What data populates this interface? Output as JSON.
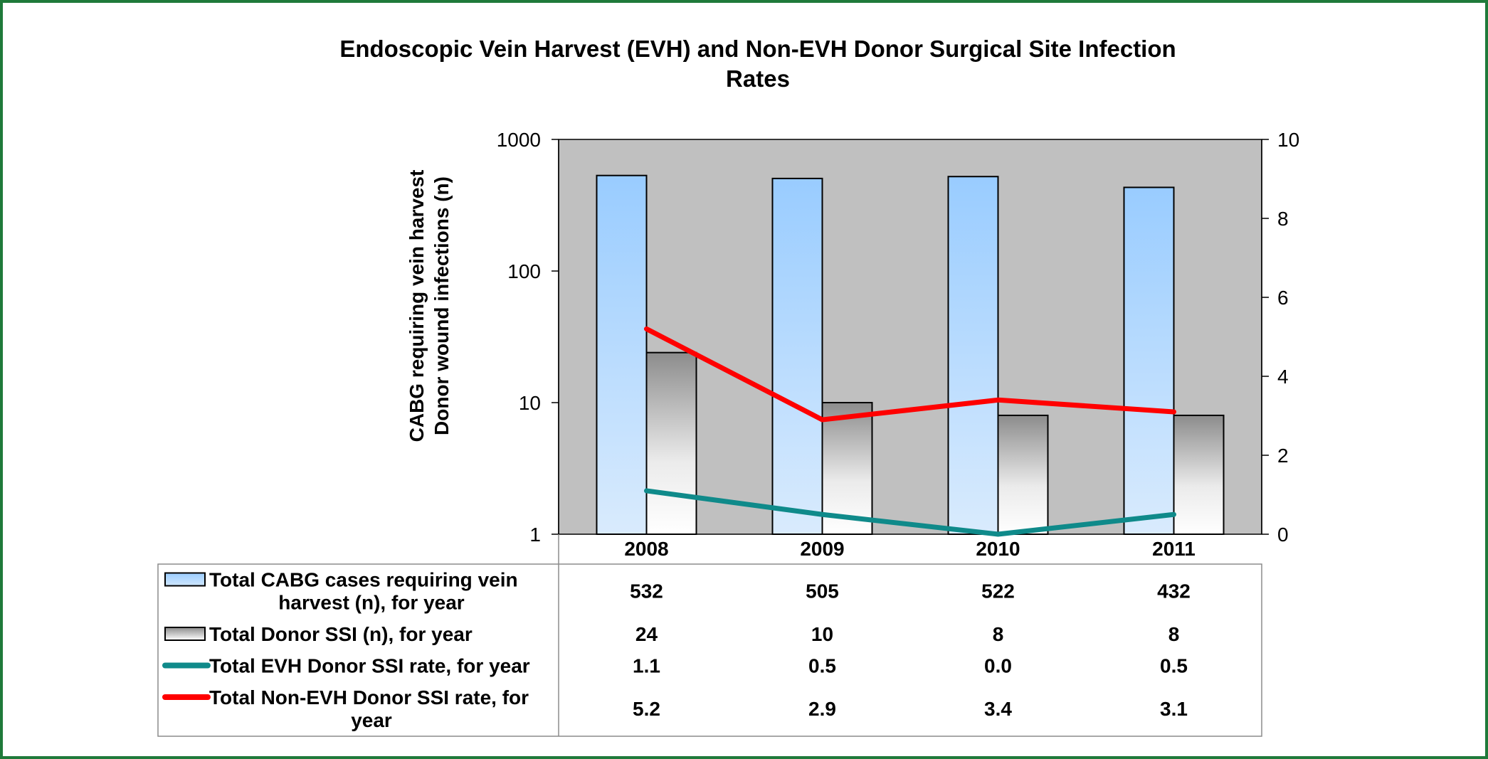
{
  "chart_data": {
    "type": "bar",
    "title": "Endoscopic Vein Harvest (EVH) and Non-EVH Donor Surgical Site Infection Rates",
    "title_lines": [
      "Endoscopic Vein Harvest (EVH) and Non-EVH Donor Surgical Site Infection",
      "Rates"
    ],
    "ylabel_lines": [
      "CABG requiring vein harvest",
      "Donor wound infections (n)"
    ],
    "y_left": {
      "scale": "log",
      "range": [
        1,
        1000
      ],
      "ticks": [
        "1",
        "10",
        "100",
        "1000"
      ]
    },
    "y_right": {
      "scale": "linear",
      "range": [
        0,
        10
      ],
      "ticks": [
        "0",
        "2",
        "4",
        "6",
        "8",
        "10"
      ]
    },
    "grid": false,
    "plot_background": "#c0c0c0",
    "categories": [
      "2008",
      "2009",
      "2010",
      "2011"
    ],
    "series": [
      {
        "name": "Total CABG cases requiring vein harvest (n), for year",
        "legend_lines": [
          "Total CABG cases requiring vein",
          "harvest (n), for year"
        ],
        "kind": "bar",
        "axis": "left",
        "color": "#99ccff",
        "values": [
          532,
          505,
          522,
          432
        ],
        "labels": [
          "532",
          "505",
          "522",
          "432"
        ]
      },
      {
        "name": "Total Donor SSI (n), for year",
        "legend_lines": [
          "Total Donor SSI (n), for year"
        ],
        "kind": "bar",
        "axis": "left",
        "color": "#ffffff",
        "values": [
          24,
          10,
          8,
          8
        ],
        "labels": [
          "24",
          "10",
          "8",
          "8"
        ]
      },
      {
        "name": "Total EVH Donor SSI rate, for year",
        "legend_lines": [
          "Total EVH Donor SSI rate, for year"
        ],
        "kind": "line",
        "axis": "right",
        "color": "#0f8a8a",
        "values": [
          1.1,
          0.5,
          0.0,
          0.5
        ],
        "labels": [
          "1.1",
          "0.5",
          "0.0",
          "0.5"
        ]
      },
      {
        "name": "Total Non-EVH Donor SSI rate, for year",
        "legend_lines": [
          "Total Non-EVH Donor SSI rate, for",
          "year"
        ],
        "kind": "line",
        "axis": "right",
        "color": "#ff0000",
        "values": [
          5.2,
          2.9,
          3.4,
          3.1
        ],
        "labels": [
          "5.2",
          "2.9",
          "3.4",
          "3.1"
        ]
      }
    ]
  }
}
